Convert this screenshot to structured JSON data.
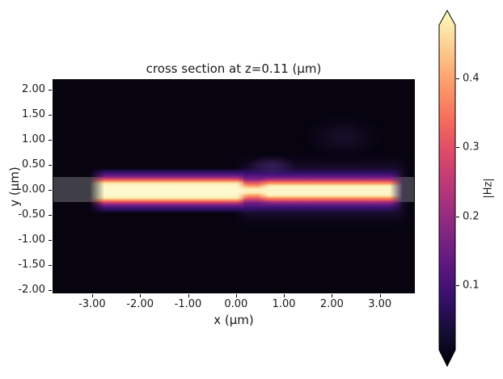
{
  "figure": {
    "title": "cross section at z=0.11 (μm)"
  },
  "axes": {
    "xlabel": "x (μm)",
    "ylabel": "y (μm)",
    "xtick_labels": [
      "-3.00",
      "-2.00",
      "-1.00",
      "0.00",
      "1.00",
      "2.00",
      "3.00"
    ],
    "ytick_labels": [
      "2.00",
      "1.50",
      "1.00",
      "0.50",
      "0.00",
      "-0.50",
      "-1.00",
      "-1.50",
      "-2.00"
    ]
  },
  "colorbar": {
    "label": "|Hz|",
    "tick_labels": [
      "0.4",
      "0.3",
      "0.2",
      "0.1"
    ],
    "colormap": "magma",
    "extend": "both"
  },
  "colors": {
    "background": "#ffffff",
    "field_min": "#000004",
    "field_max": "#fcfdbf",
    "structure_overlay": "rgba(150,150,156,0.40)"
  },
  "chart_data": {
    "type": "heatmap",
    "title": "cross section at z=0.11 (μm)",
    "xlabel": "x (μm)",
    "ylabel": "y (μm)",
    "xlim": [
      -3.85,
      3.7
    ],
    "ylim": [
      -2.1,
      2.2
    ],
    "xticks": [
      -3.0,
      -2.0,
      -1.0,
      0.0,
      1.0,
      2.0,
      3.0
    ],
    "yticks": [
      2.0,
      1.5,
      1.0,
      0.5,
      0.0,
      -0.5,
      -1.0,
      -1.5,
      -2.0
    ],
    "grid": false,
    "legend": false,
    "colormap": "magma",
    "colorbar": {
      "label": "|Hz|",
      "ticks": [
        0.1,
        0.2,
        0.3,
        0.4
      ],
      "vmin": 0.0,
      "vmax": 0.48,
      "extend": "both"
    },
    "field_description": {
      "background_value": 0.0,
      "bright_waveguide_mode_stripe": {
        "x_range": [
          -3.1,
          3.45
        ],
        "core_y_range": [
          -0.2,
          0.2
        ],
        "peak_value": 0.48,
        "note": "pale-yellow core with orange/pink/purple falloff; mode pinches near x=0.3 and has a wider diffuse purple halo for x>0.3"
      },
      "structure_overlay_rect": {
        "x_range": "full width",
        "y_range": [
          -0.25,
          0.25
        ],
        "style": "translucent gray, visible at far left and far right where field is dark"
      },
      "faint_scattered_glow": [
        {
          "x": 0.4,
          "y": 0.45
        },
        {
          "x": 1.9,
          "y": 1.0
        }
      ]
    }
  }
}
